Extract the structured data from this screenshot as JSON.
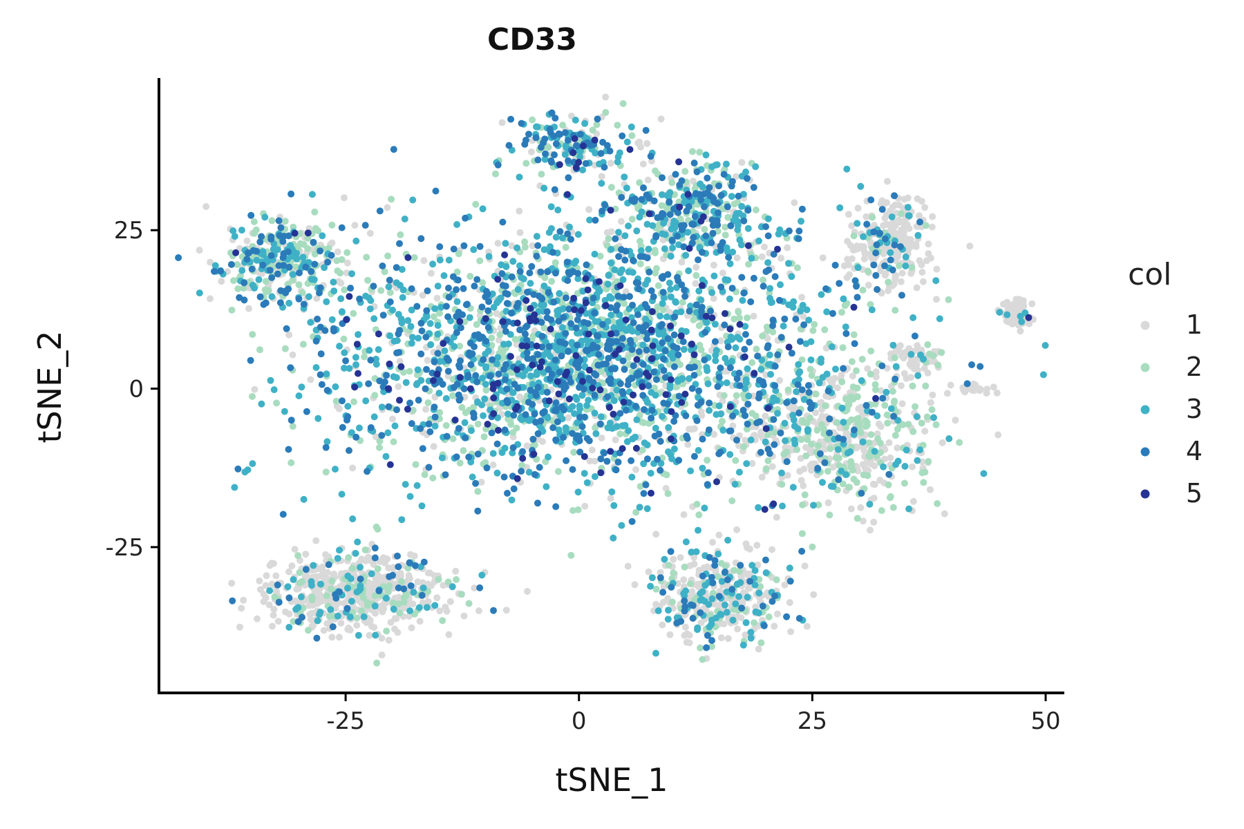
{
  "chart_data": {
    "type": "scatter",
    "title": "CD33",
    "xlabel": "tSNE_1",
    "ylabel": "tSNE_2",
    "xlim": [
      -45,
      52
    ],
    "ylim": [
      -48,
      49
    ],
    "x_ticks": [
      -25,
      0,
      25,
      50
    ],
    "y_ticks": [
      -25,
      0,
      25
    ],
    "x_tick_labels": [
      "-25",
      "0",
      "25",
      "50"
    ],
    "y_tick_labels": [
      "-25",
      "0",
      "25"
    ],
    "grid": false,
    "legend": {
      "title": "col",
      "position": "right",
      "entries": [
        {
          "label": "1",
          "color": "#d9d9d9"
        },
        {
          "label": "2",
          "color": "#a8dcbf"
        },
        {
          "label": "3",
          "color": "#3fb1c6"
        },
        {
          "label": "4",
          "color": "#2b7bb9"
        },
        {
          "label": "5",
          "color": "#253494"
        }
      ]
    },
    "clusters": [
      {
        "region": "main",
        "center": [
          0,
          5
        ],
        "spread": [
          22,
          16
        ],
        "n": 2600,
        "weights": [
          0.15,
          0.22,
          0.33,
          0.25,
          0.05
        ]
      },
      {
        "region": "upper-center",
        "center": [
          -1,
          38
        ],
        "spread": [
          5,
          4
        ],
        "n": 180,
        "weights": [
          0.2,
          0.2,
          0.3,
          0.27,
          0.03
        ]
      },
      {
        "region": "upper-right-lobe",
        "center": [
          12,
          28
        ],
        "spread": [
          7,
          6
        ],
        "n": 350,
        "weights": [
          0.15,
          0.3,
          0.3,
          0.22,
          0.03
        ]
      },
      {
        "region": "left-arm",
        "center": [
          -32,
          20
        ],
        "spread": [
          6,
          6
        ],
        "n": 320,
        "weights": [
          0.25,
          0.35,
          0.2,
          0.18,
          0.02
        ]
      },
      {
        "region": "right-center",
        "center": [
          28,
          -8
        ],
        "spread": [
          8,
          9
        ],
        "n": 520,
        "weights": [
          0.55,
          0.3,
          0.1,
          0.05,
          0.0
        ]
      },
      {
        "region": "lower-center",
        "center": [
          15,
          -33
        ],
        "spread": [
          6,
          6
        ],
        "n": 380,
        "weights": [
          0.6,
          0.15,
          0.15,
          0.1,
          0.0
        ]
      },
      {
        "region": "lower-left",
        "center": [
          -24,
          -32
        ],
        "spread": [
          8,
          5
        ],
        "n": 600,
        "weights": [
          0.72,
          0.13,
          0.1,
          0.05,
          0.0
        ]
      },
      {
        "region": "top-right-group",
        "center": [
          33,
          23
        ],
        "spread": [
          4,
          6
        ],
        "n": 250,
        "weights": [
          0.78,
          0.1,
          0.07,
          0.05,
          0.0
        ]
      },
      {
        "region": "right-small",
        "center": [
          36,
          5
        ],
        "spread": [
          2,
          2
        ],
        "n": 60,
        "weights": [
          0.8,
          0.1,
          0.1,
          0.0,
          0.0
        ]
      },
      {
        "region": "far-right-cluster",
        "center": [
          47,
          12
        ],
        "spread": [
          1.3,
          1.5
        ],
        "n": 60,
        "weights": [
          0.96,
          0.0,
          0.04,
          0.0,
          0.0
        ]
      },
      {
        "region": "far-right-small",
        "center": [
          42,
          0
        ],
        "spread": [
          2,
          0.7
        ],
        "n": 30,
        "weights": [
          1.0,
          0.0,
          0.0,
          0.0,
          0.0
        ]
      }
    ]
  }
}
